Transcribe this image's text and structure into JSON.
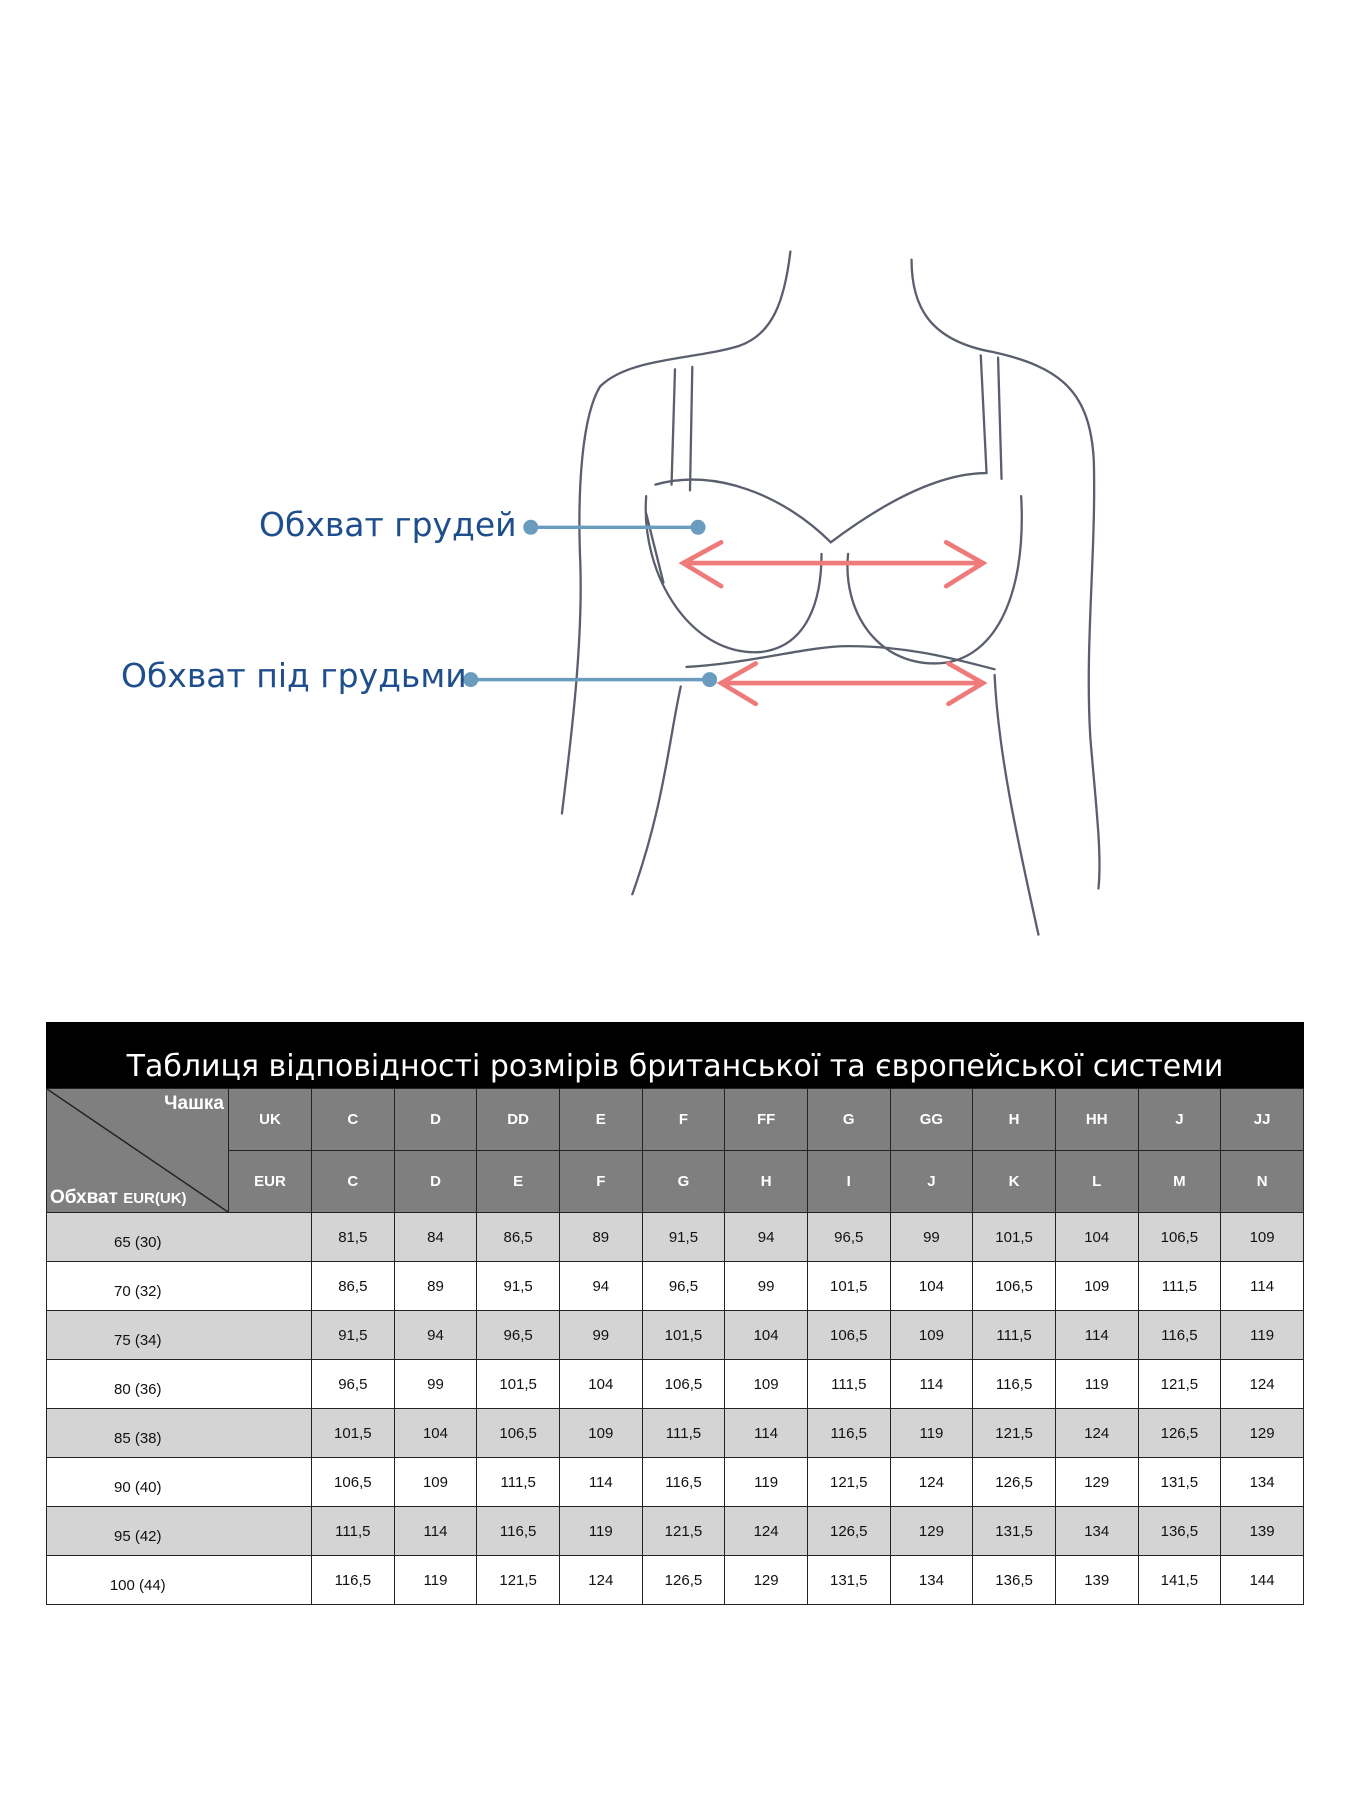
{
  "labels": {
    "bust": "Обхват грудей",
    "underbust": "Обхват під грудьми"
  },
  "colors": {
    "label_blue": "#1f4e8c",
    "arrow_red": "#ef7a7a",
    "pointer_blue": "#6a9cbf",
    "header_gray": "#7f7f7f",
    "row_gray": "#d4d4d4"
  },
  "table": {
    "title": "Таблиця відповідності розмірів британської та європейської системи",
    "corner_cup": "Чашка",
    "corner_girth": "Обхват",
    "corner_girth_unit": "EUR(UK)",
    "uk_label": "UK",
    "eur_label": "EUR",
    "uk_cups": [
      "C",
      "D",
      "DD",
      "E",
      "F",
      "FF",
      "G",
      "GG",
      "H",
      "HH",
      "J",
      "JJ"
    ],
    "eur_cups": [
      "C",
      "D",
      "E",
      "F",
      "G",
      "H",
      "I",
      "J",
      "K",
      "L",
      "M",
      "N"
    ],
    "rows": [
      {
        "girth": "65 (30)",
        "values": [
          "81,5",
          "84",
          "86,5",
          "89",
          "91,5",
          "94",
          "96,5",
          "99",
          "101,5",
          "104",
          "106,5",
          "109"
        ]
      },
      {
        "girth": "70 (32)",
        "values": [
          "86,5",
          "89",
          "91,5",
          "94",
          "96,5",
          "99",
          "101,5",
          "104",
          "106,5",
          "109",
          "111,5",
          "114"
        ]
      },
      {
        "girth": "75 (34)",
        "values": [
          "91,5",
          "94",
          "96,5",
          "99",
          "101,5",
          "104",
          "106,5",
          "109",
          "111,5",
          "114",
          "116,5",
          "119"
        ]
      },
      {
        "girth": "80 (36)",
        "values": [
          "96,5",
          "99",
          "101,5",
          "104",
          "106,5",
          "109",
          "111,5",
          "114",
          "116,5",
          "119",
          "121,5",
          "124"
        ]
      },
      {
        "girth": "85 (38)",
        "values": [
          "101,5",
          "104",
          "106,5",
          "109",
          "111,5",
          "114",
          "116,5",
          "119",
          "121,5",
          "124",
          "126,5",
          "129"
        ]
      },
      {
        "girth": "90 (40)",
        "values": [
          "106,5",
          "109",
          "111,5",
          "114",
          "116,5",
          "119",
          "121,5",
          "124",
          "126,5",
          "129",
          "131,5",
          "134"
        ]
      },
      {
        "girth": "95 (42)",
        "values": [
          "111,5",
          "114",
          "116,5",
          "119",
          "121,5",
          "124",
          "126,5",
          "129",
          "131,5",
          "134",
          "136,5",
          "139"
        ]
      },
      {
        "girth": "100 (44)",
        "values": [
          "116,5",
          "119",
          "121,5",
          "124",
          "126,5",
          "129",
          "131,5",
          "134",
          "136,5",
          "139",
          "141,5",
          "144"
        ]
      }
    ]
  }
}
